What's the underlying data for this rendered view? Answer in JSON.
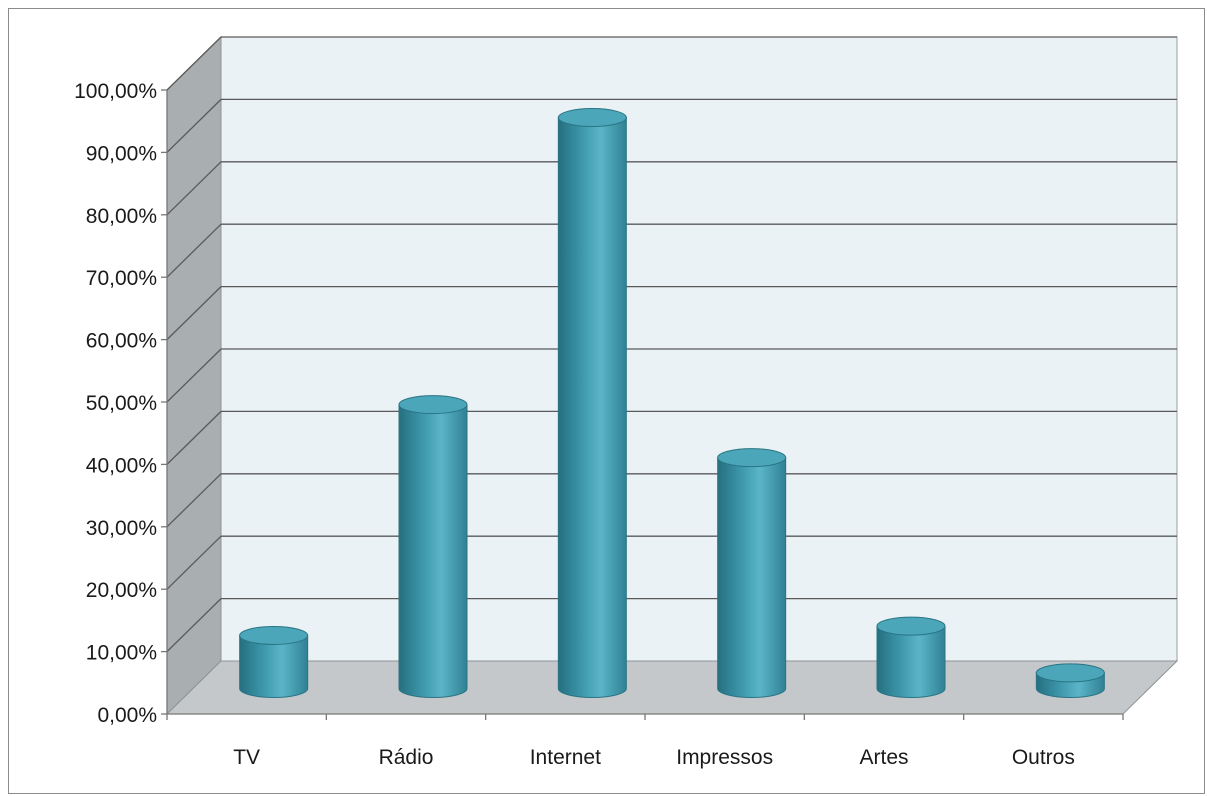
{
  "chart_data": {
    "type": "bar",
    "style": "3d-cylinder",
    "title": "",
    "xlabel": "",
    "ylabel": "",
    "categories": [
      "TV",
      "Rádio",
      "Internet",
      "Impressos",
      "Artes",
      "Outros"
    ],
    "values": [
      8.5,
      45.5,
      91.5,
      37,
      10,
      2.5
    ],
    "ylim": [
      0,
      100
    ],
    "y_ticks": [
      0,
      10,
      20,
      30,
      40,
      50,
      60,
      70,
      80,
      90,
      100
    ],
    "y_tick_labels": [
      "0,00%",
      "10,00%",
      "20,00%",
      "30,00%",
      "40,00%",
      "50,00%",
      "60,00%",
      "70,00%",
      "80,00%",
      "90,00%",
      "100,00%"
    ],
    "grid": true,
    "legend": "none",
    "colors": {
      "bar": "#3d98ab",
      "bar_highlight": "#5bb5c8",
      "bar_shadow": "#256f80",
      "bar_top": "#4aa6b8",
      "back_wall": "#eaf2f5",
      "side_wall": "#a9aeb0",
      "floor": "#c4c8cb",
      "gridline": "#5a5a5a"
    }
  }
}
